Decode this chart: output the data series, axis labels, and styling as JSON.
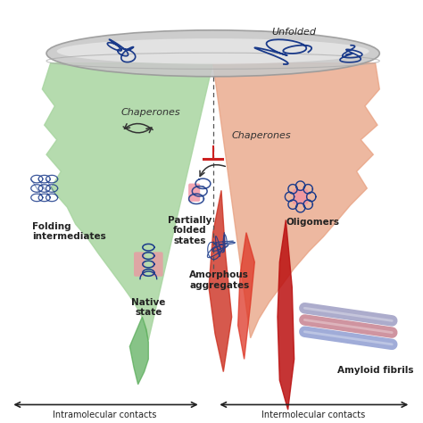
{
  "bg_color": "#ffffff",
  "labels": {
    "unfolded": "Unfolded",
    "chaperones_left": "Chaperones",
    "chaperones_right": "Chaperones",
    "folding_int": "Folding\nintermediates",
    "native": "Native\nstate",
    "partially_folded": "Partially\nfolded\nstates",
    "amorphous": "Amorphous\naggregates",
    "oligomers": "Oligomers",
    "amyloid": "Amyloid fibrils",
    "intramolecular": "Intramolecular contacts",
    "intermolecular": "Intermolecular contacts"
  },
  "label_fontsize": 7.5
}
